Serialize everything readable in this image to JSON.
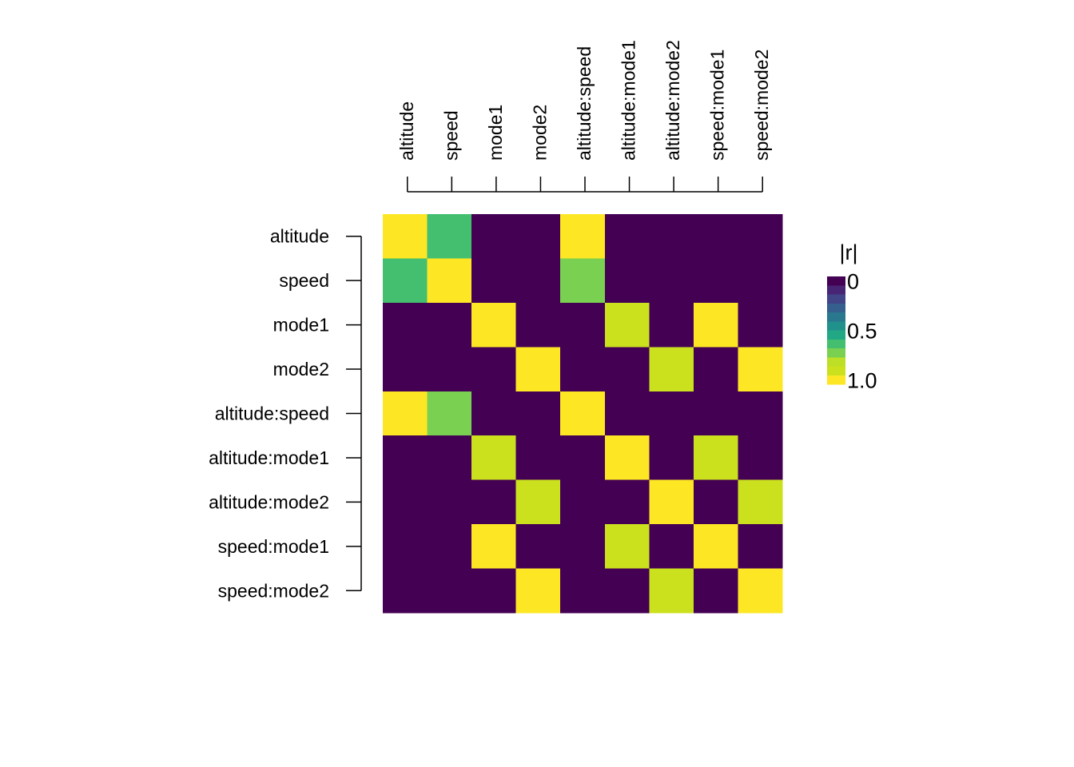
{
  "chart_data": {
    "type": "heatmap",
    "variables": [
      "altitude",
      "speed",
      "mode1",
      "mode2",
      "altitude:speed",
      "altitude:mode1",
      "altitude:mode2",
      "speed:mode1",
      "speed:mode2"
    ],
    "matrix": [
      [
        1.0,
        0.6,
        0.0,
        0.0,
        1.0,
        0.0,
        0.0,
        0.0,
        0.0
      ],
      [
        0.6,
        1.0,
        0.0,
        0.0,
        0.7,
        0.0,
        0.0,
        0.0,
        0.0
      ],
      [
        0.0,
        0.0,
        1.0,
        0.0,
        0.0,
        0.9,
        0.0,
        1.0,
        0.0
      ],
      [
        0.0,
        0.0,
        0.0,
        1.0,
        0.0,
        0.0,
        0.9,
        0.0,
        1.0
      ],
      [
        1.0,
        0.7,
        0.0,
        0.0,
        1.0,
        0.0,
        0.0,
        0.0,
        0.0
      ],
      [
        0.0,
        0.0,
        0.9,
        0.0,
        0.0,
        1.0,
        0.0,
        0.9,
        0.0
      ],
      [
        0.0,
        0.0,
        0.0,
        0.9,
        0.0,
        0.0,
        1.0,
        0.0,
        0.9
      ],
      [
        0.0,
        0.0,
        1.0,
        0.0,
        0.0,
        0.9,
        0.0,
        1.0,
        0.0
      ],
      [
        0.0,
        0.0,
        0.0,
        1.0,
        0.0,
        0.0,
        0.9,
        0.0,
        1.0
      ]
    ],
    "value_range": [
      0,
      1
    ],
    "legend": {
      "title": "|r|",
      "tick_labels": [
        "0",
        "0.5",
        "1.0"
      ],
      "tick_values": [
        0,
        0.5,
        1.0
      ],
      "bins": 12,
      "placement": "right"
    },
    "colormap": [
      "#440154",
      "#482475",
      "#414487",
      "#355F8D",
      "#2A788E",
      "#21918C",
      "#22A884",
      "#44BF70",
      "#7AD151",
      "#BDDF26",
      "#CBE11E",
      "#FDE725"
    ],
    "grid": false
  }
}
